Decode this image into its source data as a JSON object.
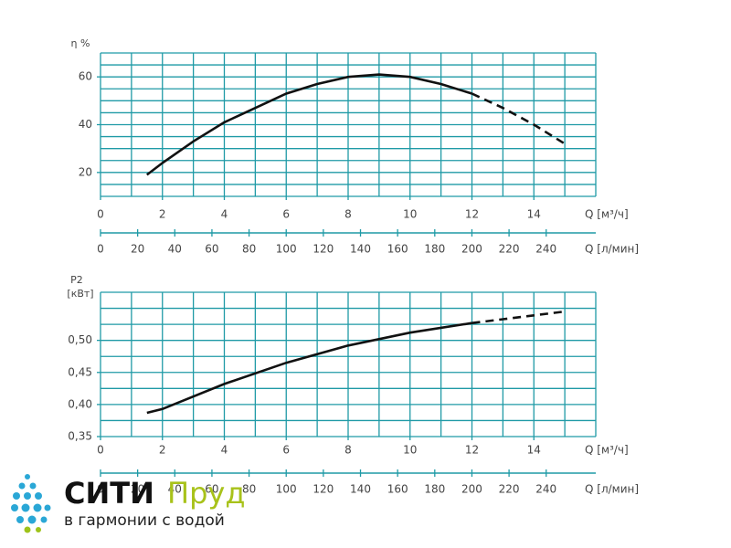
{
  "chart_data": [
    {
      "type": "line",
      "y_label": "η %",
      "x_label": "Q [м³/ч]",
      "x2_label": "Q [л/мин]",
      "x": [
        1.5,
        2,
        3,
        4,
        5,
        6,
        7,
        8,
        9,
        10,
        11,
        12,
        13,
        14,
        15
      ],
      "values": [
        19,
        24,
        33,
        41,
        47,
        53,
        57,
        60,
        61,
        60,
        57,
        53,
        47,
        40,
        32
      ],
      "dash_from": 12,
      "color": "#111111",
      "xlim": [
        0,
        16
      ],
      "xticks": [
        0,
        2,
        4,
        6,
        8,
        10,
        12,
        14
      ],
      "ylim": [
        10,
        70
      ],
      "yticks": [
        20,
        40,
        60
      ],
      "x2lim": [
        0,
        266.7
      ],
      "x2ticks": [
        0,
        20,
        40,
        60,
        80,
        100,
        120,
        140,
        160,
        180,
        200,
        220,
        240
      ],
      "grid": true,
      "grid_color": "#1f9aa6"
    },
    {
      "type": "line",
      "y_label": "P2",
      "y_unit": "[кВт]",
      "x_label": "Q [м³/ч]",
      "x2_label": "Q [л/мин]",
      "x": [
        1.5,
        2,
        4,
        6,
        8,
        10,
        12,
        13,
        14,
        15
      ],
      "values": [
        0.387,
        0.393,
        0.432,
        0.465,
        0.492,
        0.512,
        0.527,
        0.533,
        0.539,
        0.545
      ],
      "dash_from": 12,
      "color": "#111111",
      "xlim": [
        0,
        16
      ],
      "xticks": [
        0,
        2,
        4,
        6,
        8,
        10,
        12,
        14
      ],
      "ylim": [
        0.35,
        0.575
      ],
      "yticks": [
        {
          "value": 0.35,
          "label": "0,35"
        },
        {
          "value": 0.4,
          "label": "0,40"
        },
        {
          "value": 0.45,
          "label": "0,45"
        },
        {
          "value": 0.5,
          "label": "0,50"
        }
      ],
      "x2lim": [
        0,
        266.7
      ],
      "x2ticks": [
        0,
        20,
        40,
        60,
        80,
        100,
        120,
        140,
        160,
        180,
        200,
        220,
        240
      ],
      "grid": true,
      "grid_color": "#1f9aa6"
    }
  ],
  "logo": {
    "name1": "СИТИ",
    "name2": "Пруд",
    "tagline": "в гармонии с водой"
  }
}
